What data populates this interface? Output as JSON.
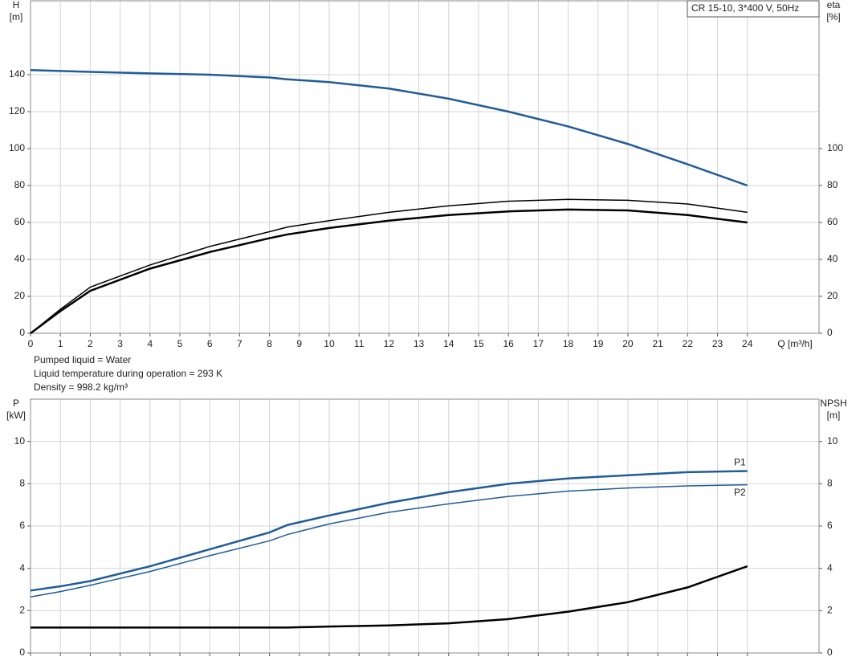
{
  "chart_data": [
    {
      "type": "line",
      "title": "CR 15-10, 3*400 V, 50Hz",
      "x": [
        0,
        1,
        2,
        4,
        6,
        8,
        8.6,
        10,
        12,
        14,
        16,
        18,
        20,
        22,
        24
      ],
      "series": [
        {
          "color": "#1f5c99",
          "values": [
            142.5,
            142,
            141.5,
            140.7,
            140,
            138.5,
            137.5,
            136,
            132.5,
            127,
            120,
            112,
            102.5,
            91.5,
            80
          ]
        },
        {
          "color": "#000000",
          "axis": "y2",
          "values": [
            0,
            13,
            25,
            37,
            47,
            55,
            57.5,
            61,
            65.5,
            69,
            71.5,
            72.5,
            72,
            70,
            65.5
          ]
        },
        {
          "color": "#000000",
          "axis": "y2",
          "values": [
            0,
            12,
            23,
            35,
            44,
            51.5,
            53.5,
            57,
            61,
            64,
            66,
            67,
            66.5,
            64,
            60
          ]
        }
      ],
      "xlabel": "Q [m³/h]",
      "xlim": [
        0,
        26.4
      ],
      "xticks": [
        0,
        1,
        2,
        3,
        4,
        5,
        6,
        7,
        8,
        9,
        10,
        11,
        12,
        13,
        14,
        15,
        16,
        17,
        18,
        19,
        20,
        21,
        22,
        23,
        24
      ],
      "ylabel": "H",
      "yunit": "[m]",
      "ylim": [
        0,
        180
      ],
      "yticks": [
        0,
        20,
        40,
        60,
        80,
        100,
        120,
        140
      ],
      "y2label": "eta",
      "y2unit": "[%]",
      "y2lim": [
        0,
        180
      ],
      "y2ticks": [
        0,
        20,
        40,
        60,
        80,
        100
      ],
      "grid": true
    },
    {
      "type": "line",
      "x": [
        0,
        1,
        2,
        4,
        6,
        8,
        8.6,
        10,
        12,
        14,
        16,
        18,
        20,
        22,
        24
      ],
      "series": [
        {
          "name": "P1",
          "color": "#1f5c99",
          "values": [
            2.95,
            3.15,
            3.4,
            4.1,
            4.9,
            5.7,
            6.05,
            6.5,
            7.1,
            7.6,
            8.0,
            8.25,
            8.4,
            8.55,
            8.6
          ]
        },
        {
          "name": "P2",
          "color": "#1f5c99",
          "values": [
            2.65,
            2.9,
            3.2,
            3.85,
            4.6,
            5.3,
            5.6,
            6.1,
            6.65,
            7.05,
            7.4,
            7.65,
            7.8,
            7.9,
            7.95
          ]
        },
        {
          "color": "#000000",
          "axis": "y2",
          "values": [
            1.2,
            1.2,
            1.2,
            1.2,
            1.2,
            1.2,
            1.2,
            1.25,
            1.3,
            1.4,
            1.6,
            1.95,
            2.4,
            3.1,
            4.1
          ]
        }
      ],
      "xlim": [
        0,
        26.4
      ],
      "ylabel": "P",
      "yunit": "[kW]",
      "ylim": [
        0,
        12
      ],
      "yticks": [
        0,
        2,
        4,
        6,
        8,
        10
      ],
      "y2label": "NPSH",
      "y2unit": "[m]",
      "y2lim": [
        0,
        12
      ],
      "y2ticks": [
        0,
        2,
        4,
        6,
        8,
        10
      ],
      "grid": true
    }
  ],
  "info_lines": [
    "Pumped liquid = Water",
    "Liquid temperature during operation = 293 K",
    "Density = 998.2 kg/m³"
  ]
}
